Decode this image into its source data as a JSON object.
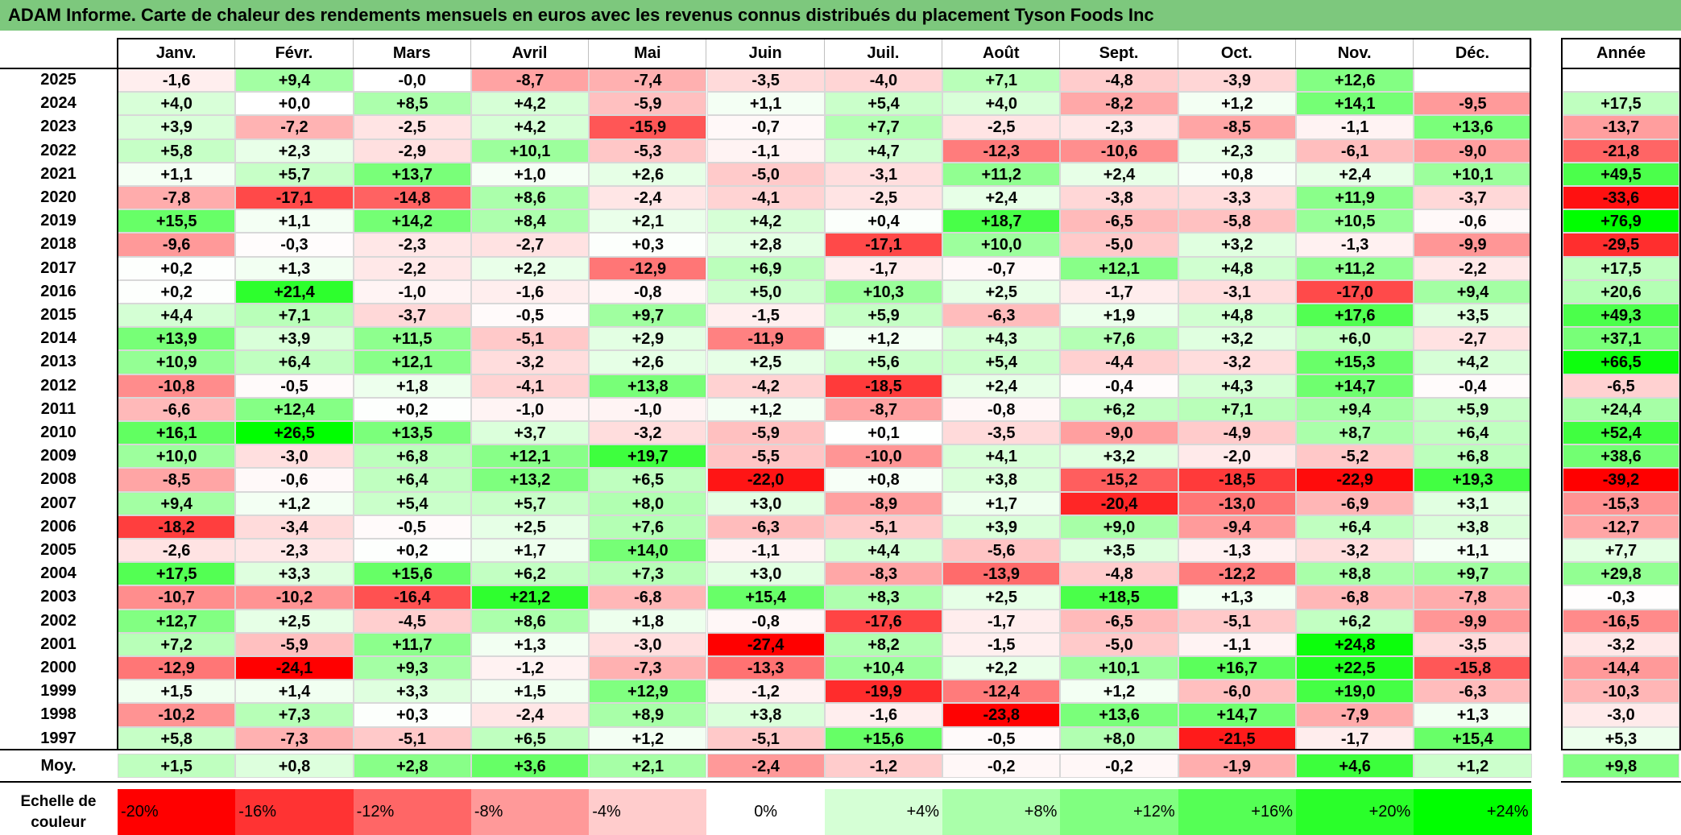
{
  "title": "ADAM Informe. Carte de chaleur des rendements mensuels en euros avec les revenus connus distribués du placement Tyson Foods Inc",
  "headers": {
    "months": [
      "Janv.",
      "Févr.",
      "Mars",
      "Avril",
      "Mai",
      "Juin",
      "Juil.",
      "Août",
      "Sept.",
      "Oct.",
      "Nov.",
      "Déc."
    ],
    "year": "Année"
  },
  "chart_data": {
    "type": "heatmap",
    "title": "ADAM Informe. Carte de chaleur des rendements mensuels en euros avec les revenus connus distribués du placement Tyson Foods Inc",
    "x_categories": [
      "Janv.",
      "Févr.",
      "Mars",
      "Avril",
      "Mai",
      "Juin",
      "Juil.",
      "Août",
      "Sept.",
      "Oct.",
      "Nov.",
      "Déc."
    ],
    "rows": [
      {
        "year": "2025",
        "values": [
          "-1,6",
          "+9,4",
          "-0,0",
          "-8,7",
          "-7,4",
          "-3,5",
          "-4,0",
          "+7,1",
          "-4,8",
          "-3,9",
          "+12,6",
          ""
        ],
        "annual": ""
      },
      {
        "year": "2024",
        "values": [
          "+4,0",
          "+0,0",
          "+8,5",
          "+4,2",
          "-5,9",
          "+1,1",
          "+5,4",
          "+4,0",
          "-8,2",
          "+1,2",
          "+14,1",
          "-9,5"
        ],
        "annual": "+17,5"
      },
      {
        "year": "2023",
        "values": [
          "+3,9",
          "-7,2",
          "-2,5",
          "+4,2",
          "-15,9",
          "-0,7",
          "+7,7",
          "-2,5",
          "-2,3",
          "-8,5",
          "-1,1",
          "+13,6"
        ],
        "annual": "-13,7"
      },
      {
        "year": "2022",
        "values": [
          "+5,8",
          "+2,3",
          "-2,9",
          "+10,1",
          "-5,3",
          "-1,1",
          "+4,7",
          "-12,3",
          "-10,6",
          "+2,3",
          "-6,1",
          "-9,0"
        ],
        "annual": "-21,8"
      },
      {
        "year": "2021",
        "values": [
          "+1,1",
          "+5,7",
          "+13,7",
          "+1,0",
          "+2,6",
          "-5,0",
          "-3,1",
          "+11,2",
          "+2,4",
          "+0,8",
          "+2,4",
          "+10,1"
        ],
        "annual": "+49,5"
      },
      {
        "year": "2020",
        "values": [
          "-7,8",
          "-17,1",
          "-14,8",
          "+8,6",
          "-2,4",
          "-4,1",
          "-2,5",
          "+2,4",
          "-3,8",
          "-3,3",
          "+11,9",
          "-3,7"
        ],
        "annual": "-33,6"
      },
      {
        "year": "2019",
        "values": [
          "+15,5",
          "+1,1",
          "+14,2",
          "+8,4",
          "+2,1",
          "+4,2",
          "+0,4",
          "+18,7",
          "-6,5",
          "-5,8",
          "+10,5",
          "-0,6"
        ],
        "annual": "+76,9"
      },
      {
        "year": "2018",
        "values": [
          "-9,6",
          "-0,3",
          "-2,3",
          "-2,7",
          "+0,3",
          "+2,8",
          "-17,1",
          "+10,0",
          "-5,0",
          "+3,2",
          "-1,3",
          "-9,9"
        ],
        "annual": "-29,5"
      },
      {
        "year": "2017",
        "values": [
          "+0,2",
          "+1,3",
          "-2,2",
          "+2,2",
          "-12,9",
          "+6,9",
          "-1,7",
          "-0,7",
          "+12,1",
          "+4,8",
          "+11,2",
          "-2,2"
        ],
        "annual": "+17,5"
      },
      {
        "year": "2016",
        "values": [
          "+0,2",
          "+21,4",
          "-1,0",
          "-1,6",
          "-0,8",
          "+5,0",
          "+10,3",
          "+2,5",
          "-1,7",
          "-3,1",
          "-17,0",
          "+9,4"
        ],
        "annual": "+20,6"
      },
      {
        "year": "2015",
        "values": [
          "+4,4",
          "+7,1",
          "-3,7",
          "-0,5",
          "+9,7",
          "-1,5",
          "+5,9",
          "-6,3",
          "+1,9",
          "+4,8",
          "+17,6",
          "+3,5"
        ],
        "annual": "+49,3"
      },
      {
        "year": "2014",
        "values": [
          "+13,9",
          "+3,9",
          "+11,5",
          "-5,1",
          "+2,9",
          "-11,9",
          "+1,2",
          "+4,3",
          "+7,6",
          "+3,2",
          "+6,0",
          "-2,7"
        ],
        "annual": "+37,1"
      },
      {
        "year": "2013",
        "values": [
          "+10,9",
          "+6,4",
          "+12,1",
          "-3,2",
          "+2,6",
          "+2,5",
          "+5,6",
          "+5,4",
          "-4,4",
          "-3,2",
          "+15,3",
          "+4,2"
        ],
        "annual": "+66,5"
      },
      {
        "year": "2012",
        "values": [
          "-10,8",
          "-0,5",
          "+1,8",
          "-4,1",
          "+13,8",
          "-4,2",
          "-18,5",
          "+2,4",
          "-0,4",
          "+4,3",
          "+14,7",
          "-0,4"
        ],
        "annual": "-6,5"
      },
      {
        "year": "2011",
        "values": [
          "-6,6",
          "+12,4",
          "+0,2",
          "-1,0",
          "-1,0",
          "+1,2",
          "-8,7",
          "-0,8",
          "+6,2",
          "+7,1",
          "+9,4",
          "+5,9"
        ],
        "annual": "+24,4"
      },
      {
        "year": "2010",
        "values": [
          "+16,1",
          "+26,5",
          "+13,5",
          "+3,7",
          "-3,2",
          "-5,9",
          "+0,1",
          "-3,5",
          "-9,0",
          "-4,9",
          "+8,7",
          "+6,4"
        ],
        "annual": "+52,4"
      },
      {
        "year": "2009",
        "values": [
          "+10,0",
          "-3,0",
          "+6,8",
          "+12,1",
          "+19,7",
          "-5,5",
          "-10,0",
          "+4,1",
          "+3,2",
          "-2,0",
          "-5,2",
          "+6,8"
        ],
        "annual": "+38,6"
      },
      {
        "year": "2008",
        "values": [
          "-8,5",
          "-0,6",
          "+6,4",
          "+13,2",
          "+6,5",
          "-22,0",
          "+0,8",
          "+3,8",
          "-15,2",
          "-18,5",
          "-22,9",
          "+19,3"
        ],
        "annual": "-39,2"
      },
      {
        "year": "2007",
        "values": [
          "+9,4",
          "+1,2",
          "+5,4",
          "+5,7",
          "+8,0",
          "+3,0",
          "-8,9",
          "+1,7",
          "-20,4",
          "-13,0",
          "-6,9",
          "+3,1"
        ],
        "annual": "-15,3"
      },
      {
        "year": "2006",
        "values": [
          "-18,2",
          "-3,4",
          "-0,5",
          "+2,5",
          "+7,6",
          "-6,3",
          "-5,1",
          "+3,9",
          "+9,0",
          "-9,4",
          "+6,4",
          "+3,8"
        ],
        "annual": "-12,7"
      },
      {
        "year": "2005",
        "values": [
          "-2,6",
          "-2,3",
          "+0,2",
          "+1,7",
          "+14,0",
          "-1,1",
          "+4,4",
          "-5,6",
          "+3,5",
          "-1,3",
          "-3,2",
          "+1,1"
        ],
        "annual": "+7,7"
      },
      {
        "year": "2004",
        "values": [
          "+17,5",
          "+3,3",
          "+15,6",
          "+6,2",
          "+7,3",
          "+3,0",
          "-8,3",
          "-13,9",
          "-4,8",
          "-12,2",
          "+8,8",
          "+9,7"
        ],
        "annual": "+29,8"
      },
      {
        "year": "2003",
        "values": [
          "-10,7",
          "-10,2",
          "-16,4",
          "+21,2",
          "-6,8",
          "+15,4",
          "+8,3",
          "+2,5",
          "+18,5",
          "+1,3",
          "-6,8",
          "-7,8"
        ],
        "annual": "-0,3"
      },
      {
        "year": "2002",
        "values": [
          "+12,7",
          "+2,5",
          "-4,5",
          "+8,6",
          "+1,8",
          "-0,8",
          "-17,6",
          "-1,7",
          "-6,5",
          "-5,1",
          "+6,2",
          "-9,9"
        ],
        "annual": "-16,5"
      },
      {
        "year": "2001",
        "values": [
          "+7,2",
          "-5,9",
          "+11,7",
          "+1,3",
          "-3,0",
          "-27,4",
          "+8,2",
          "-1,5",
          "-5,0",
          "-1,1",
          "+24,8",
          "-3,5"
        ],
        "annual": "-3,2"
      },
      {
        "year": "2000",
        "values": [
          "-12,9",
          "-24,1",
          "+9,3",
          "-1,2",
          "-7,3",
          "-13,3",
          "+10,4",
          "+2,2",
          "+10,1",
          "+16,7",
          "+22,5",
          "-15,8"
        ],
        "annual": "-14,4"
      },
      {
        "year": "1999",
        "values": [
          "+1,5",
          "+1,4",
          "+3,3",
          "+1,5",
          "+12,9",
          "-1,2",
          "-19,9",
          "-12,4",
          "+1,2",
          "-6,0",
          "+19,0",
          "-6,3"
        ],
        "annual": "-10,3"
      },
      {
        "year": "1998",
        "values": [
          "-10,2",
          "+7,3",
          "+0,3",
          "-2,4",
          "+8,9",
          "+3,8",
          "-1,6",
          "-23,8",
          "+13,6",
          "+14,7",
          "-7,9",
          "+1,3"
        ],
        "annual": "-3,0"
      },
      {
        "year": "1997",
        "values": [
          "+5,8",
          "-7,3",
          "-5,1",
          "+6,5",
          "+1,2",
          "-5,1",
          "+15,6",
          "-0,5",
          "+8,0",
          "-21,5",
          "-1,7",
          "+15,4"
        ],
        "annual": "+5,3"
      }
    ],
    "average": {
      "label": "Moy.",
      "values": [
        "+1,5",
        "+0,8",
        "+2,8",
        "+3,6",
        "+2,1",
        "-2,4",
        "-1,2",
        "-0,2",
        "-0,2",
        "-1,9",
        "+4,6",
        "+1,2"
      ],
      "annual": "+9,8"
    },
    "color_scale": {
      "label": "Echelle de couleur",
      "stops": [
        "-20%",
        "-16%",
        "-12%",
        "-8%",
        "-4%",
        "0%",
        "+4%",
        "+8%",
        "+12%",
        "+16%",
        "+20%",
        "+24%"
      ],
      "negative_color": "#ff0000",
      "neutral_color": "#ffffff",
      "positive_color": "#00ff00"
    }
  }
}
